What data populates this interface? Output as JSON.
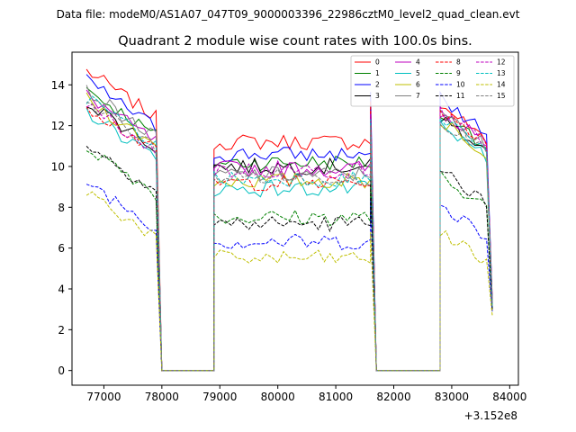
{
  "figure": {
    "suptitle": "Data file: modeM0/AS1A07_047T09_9000003396_22986cztM0_level2_quad_clean.evt",
    "title": "Quadrant 2 module wise count rates with 100.0s bins.",
    "offset_label": "+3.152e8"
  },
  "chart_data": {
    "type": "line",
    "title": "Quadrant 2 module wise count rates with 100.0s bins.",
    "xlabel": "",
    "ylabel": "",
    "x_offset": 315200000,
    "xlim": [
      76450,
      84150
    ],
    "ylim": [
      -0.72,
      15.6
    ],
    "xticks": [
      77000,
      78000,
      79000,
      80000,
      81000,
      82000,
      83000,
      84000
    ],
    "yticks": [
      0,
      2,
      4,
      6,
      8,
      10,
      12,
      14
    ],
    "grid": false,
    "legend": {
      "placement": "top-right",
      "columns": 4
    },
    "segments": [
      {
        "x_start": 76700,
        "x_end": 78900,
        "zero_from": 77950
      },
      {
        "x_start": 78900,
        "x_end": 81600,
        "zero_from": null
      },
      {
        "x_start": 81600,
        "x_end": 82800,
        "zero_from": 81650
      },
      {
        "x_start": 82800,
        "x_end": 83700,
        "zero_from": null
      }
    ],
    "series": [
      {
        "name": "0",
        "color": "#ff0000",
        "dash": "solid",
        "levels": [
          14.7,
          11.2,
          13.0,
          3.5
        ]
      },
      {
        "name": "1",
        "color": "#008000",
        "dash": "solid",
        "levels": [
          13.8,
          10.2,
          12.5,
          3.3
        ]
      },
      {
        "name": "2",
        "color": "#0000ff",
        "dash": "solid",
        "levels": [
          14.2,
          10.6,
          13.3,
          3.4
        ]
      },
      {
        "name": "3",
        "color": "#000000",
        "dash": "solid",
        "levels": [
          13.2,
          10.0,
          12.4,
          3.2
        ]
      },
      {
        "name": "4",
        "color": "#bf00bf",
        "dash": "solid",
        "levels": [
          13.5,
          9.9,
          12.7,
          3.3
        ]
      },
      {
        "name": "5",
        "color": "#00bfbf",
        "dash": "solid",
        "levels": [
          12.7,
          8.9,
          12.0,
          3.1
        ]
      },
      {
        "name": "6",
        "color": "#bfbf00",
        "dash": "solid",
        "levels": [
          13.3,
          9.3,
          12.3,
          3.2
        ]
      },
      {
        "name": "7",
        "color": "#808080",
        "dash": "solid",
        "levels": [
          13.7,
          9.6,
          12.6,
          3.3
        ]
      },
      {
        "name": "8",
        "color": "#ff0000",
        "dash": "dashed",
        "levels": [
          13.0,
          9.2,
          12.8,
          3.3
        ]
      },
      {
        "name": "9",
        "color": "#008000",
        "dash": "dashed",
        "levels": [
          11.0,
          7.5,
          9.5,
          3.0
        ]
      },
      {
        "name": "10",
        "color": "#0000ff",
        "dash": "dashed",
        "levels": [
          9.3,
          6.3,
          8.2,
          2.9
        ]
      },
      {
        "name": "11",
        "color": "#000000",
        "dash": "dashed",
        "levels": [
          11.1,
          7.2,
          9.8,
          3.0
        ]
      },
      {
        "name": "12",
        "color": "#bf00bf",
        "dash": "dashed",
        "levels": [
          13.0,
          9.8,
          12.7,
          3.3
        ]
      },
      {
        "name": "13",
        "color": "#00bfbf",
        "dash": "dashed",
        "levels": [
          13.4,
          9.4,
          12.3,
          3.2
        ]
      },
      {
        "name": "14",
        "color": "#bfbf00",
        "dash": "dashed",
        "levels": [
          8.8,
          5.5,
          6.8,
          2.7
        ]
      },
      {
        "name": "15",
        "color": "#808080",
        "dash": "dashed",
        "levels": [
          13.2,
          9.5,
          12.3,
          3.2
        ]
      }
    ]
  }
}
